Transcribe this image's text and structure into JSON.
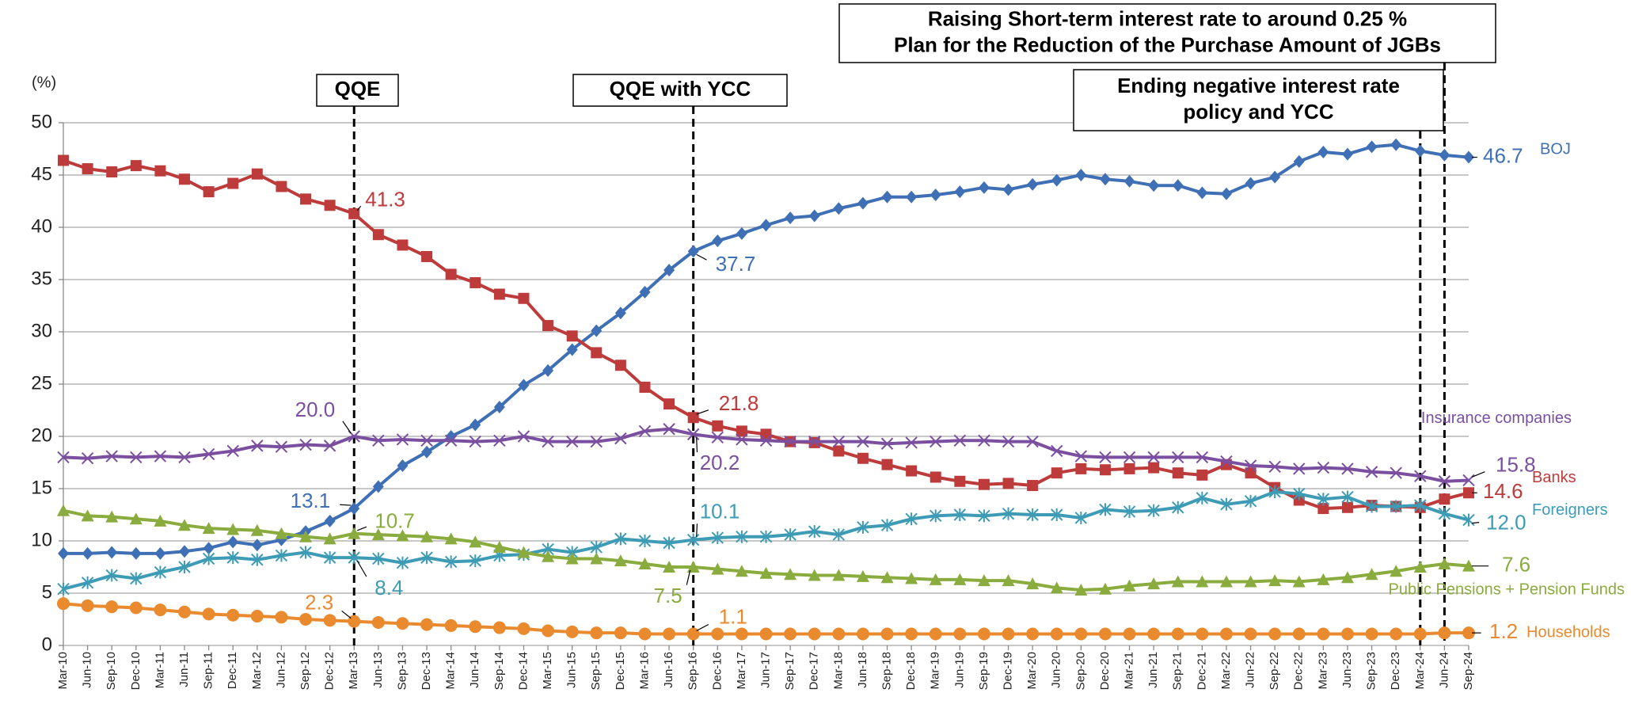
{
  "chart_data": {
    "type": "line",
    "y_unit": "(%)",
    "ylim": [
      0,
      50
    ],
    "yticks": [
      0,
      5,
      10,
      15,
      20,
      25,
      30,
      35,
      40,
      45,
      50
    ],
    "grid": true,
    "annotations": [
      [
        "QQE"
      ],
      [
        "QQE with YCC"
      ],
      [
        "Ending negative interest rate",
        "policy and YCC"
      ],
      [
        "Raising Short-term interest rate to around 0.25 %",
        "Plan for the Reduction of the Purchase Amount of JGBs"
      ]
    ],
    "categories": [
      "Mar-10",
      "Jun-10",
      "Sep-10",
      "Dec-10",
      "Mar-11",
      "Jun-11",
      "Sep-11",
      "Dec-11",
      "Mar-12",
      "Jun-12",
      "Sep-12",
      "Dec-12",
      "Mar-13",
      "Jun-13",
      "Sep-13",
      "Dec-13",
      "Mar-14",
      "Jun-14",
      "Sep-14",
      "Dec-14",
      "Mar-15",
      "Jun-15",
      "Sep-15",
      "Dec-15",
      "Mar-16",
      "Jun-16",
      "Sep-16",
      "Dec-16",
      "Mar-17",
      "Jun-17",
      "Sep-17",
      "Dec-17",
      "Mar-18",
      "Jun-18",
      "Sep-18",
      "Dec-18",
      "Mar-19",
      "Jun-19",
      "Sep-19",
      "Dec-19",
      "Mar-20",
      "Jun-20",
      "Sep-20",
      "Dec-20",
      "Mar-21",
      "Jun-21",
      "Sep-21",
      "Dec-21",
      "Mar-22",
      "Jun-22",
      "Sep-22",
      "Dec-22",
      "Mar-23",
      "Jun-23",
      "Sep-23",
      "Dec-23",
      "Mar-24",
      "Jun-24",
      "Sep-24"
    ],
    "series": [
      {
        "name": "BOJ",
        "color": "#3f6fb5",
        "marker": "diamond",
        "values": [
          8.8,
          8.8,
          8.9,
          8.8,
          8.8,
          9.0,
          9.3,
          9.9,
          9.6,
          10.1,
          10.9,
          11.9,
          13.1,
          15.2,
          17.2,
          18.5,
          20.0,
          21.1,
          22.8,
          24.9,
          26.3,
          28.3,
          30.1,
          31.8,
          33.8,
          35.9,
          37.7,
          38.7,
          39.4,
          40.2,
          40.9,
          41.1,
          41.8,
          42.3,
          42.9,
          42.9,
          43.1,
          43.4,
          43.8,
          43.6,
          44.1,
          44.5,
          45.0,
          44.6,
          44.4,
          44.0,
          44.0,
          43.3,
          43.2,
          44.2,
          44.8,
          46.3,
          47.2,
          47.0,
          47.7,
          47.9,
          47.3,
          46.9,
          46.7
        ],
        "value_labels": [
          null,
          null,
          null,
          null,
          null,
          null,
          null,
          null,
          null,
          null,
          null,
          null,
          "13.1",
          null,
          null,
          null,
          null,
          null,
          null,
          null,
          null,
          null,
          null,
          null,
          null,
          null,
          "37.7",
          null,
          null,
          null,
          null,
          null,
          null,
          null,
          null,
          null,
          null,
          null,
          null,
          null,
          null,
          null,
          null,
          null,
          null,
          null,
          null,
          null,
          null,
          null,
          null,
          null,
          null,
          null,
          null,
          null,
          null,
          null,
          "46.7"
        ]
      },
      {
        "name": "Banks",
        "color": "#be3b3b",
        "marker": "square",
        "values": [
          46.4,
          45.6,
          45.3,
          45.9,
          45.4,
          44.6,
          43.4,
          44.2,
          45.1,
          43.9,
          42.7,
          42.1,
          41.3,
          39.3,
          38.3,
          37.2,
          35.5,
          34.7,
          33.6,
          33.2,
          30.6,
          29.6,
          28.0,
          26.8,
          24.7,
          23.1,
          21.8,
          21.0,
          20.5,
          20.2,
          19.5,
          19.4,
          18.6,
          17.9,
          17.3,
          16.7,
          16.1,
          15.7,
          15.4,
          15.5,
          15.3,
          16.5,
          16.9,
          16.8,
          16.9,
          17.0,
          16.5,
          16.3,
          17.3,
          16.5,
          15.1,
          13.9,
          13.1,
          13.2,
          13.4,
          13.3,
          13.2,
          14.0,
          14.6
        ],
        "value_labels": [
          null,
          null,
          null,
          null,
          null,
          null,
          null,
          null,
          null,
          null,
          null,
          null,
          "41.3",
          null,
          null,
          null,
          null,
          null,
          null,
          null,
          null,
          null,
          null,
          null,
          null,
          null,
          "21.8",
          null,
          null,
          null,
          null,
          null,
          null,
          null,
          null,
          null,
          null,
          null,
          null,
          null,
          null,
          null,
          null,
          null,
          null,
          null,
          null,
          null,
          null,
          null,
          null,
          null,
          null,
          null,
          null,
          null,
          null,
          null,
          "14.6"
        ]
      },
      {
        "name": "Insurance companies",
        "color": "#7b4fa0",
        "marker": "x",
        "values": [
          18.0,
          17.9,
          18.1,
          18.0,
          18.1,
          18.0,
          18.3,
          18.6,
          19.1,
          19.0,
          19.2,
          19.1,
          20.0,
          19.6,
          19.7,
          19.6,
          19.6,
          19.5,
          19.6,
          20.0,
          19.5,
          19.5,
          19.5,
          19.8,
          20.5,
          20.7,
          20.2,
          19.9,
          19.7,
          19.6,
          19.5,
          19.5,
          19.5,
          19.5,
          19.3,
          19.4,
          19.5,
          19.6,
          19.6,
          19.5,
          19.5,
          18.6,
          18.1,
          18.0,
          18.0,
          18.0,
          18.0,
          18.0,
          17.6,
          17.2,
          17.1,
          16.9,
          17.0,
          16.9,
          16.6,
          16.5,
          16.2,
          15.7,
          15.8
        ],
        "value_labels": [
          null,
          null,
          null,
          null,
          null,
          null,
          null,
          null,
          null,
          null,
          null,
          null,
          "20.0",
          null,
          null,
          null,
          null,
          null,
          null,
          null,
          null,
          null,
          null,
          null,
          null,
          null,
          "20.2",
          null,
          null,
          null,
          null,
          null,
          null,
          null,
          null,
          null,
          null,
          null,
          null,
          null,
          null,
          null,
          null,
          null,
          null,
          null,
          null,
          null,
          null,
          null,
          null,
          null,
          null,
          null,
          null,
          null,
          null,
          null,
          "15.8"
        ]
      },
      {
        "name": "Foreigners",
        "color": "#3e9bb5",
        "marker": "star",
        "values": [
          5.4,
          6.0,
          6.7,
          6.4,
          7.0,
          7.5,
          8.3,
          8.4,
          8.2,
          8.6,
          8.9,
          8.4,
          8.4,
          8.3,
          7.9,
          8.4,
          8.0,
          8.1,
          8.6,
          8.7,
          9.2,
          8.9,
          9.4,
          10.2,
          10.0,
          9.8,
          10.1,
          10.3,
          10.4,
          10.4,
          10.6,
          10.9,
          10.6,
          11.3,
          11.5,
          12.1,
          12.4,
          12.5,
          12.4,
          12.6,
          12.5,
          12.5,
          12.2,
          13.0,
          12.8,
          12.9,
          13.2,
          14.1,
          13.5,
          13.8,
          14.7,
          14.5,
          14.0,
          14.2,
          13.3,
          13.3,
          13.4,
          12.6,
          12.0
        ],
        "value_labels": [
          null,
          null,
          null,
          null,
          null,
          null,
          null,
          null,
          null,
          null,
          null,
          null,
          "8.4",
          null,
          null,
          null,
          null,
          null,
          null,
          null,
          null,
          null,
          null,
          null,
          null,
          null,
          "10.1",
          null,
          null,
          null,
          null,
          null,
          null,
          null,
          null,
          null,
          null,
          null,
          null,
          null,
          null,
          null,
          null,
          null,
          null,
          null,
          null,
          null,
          null,
          null,
          null,
          null,
          null,
          null,
          null,
          null,
          null,
          null,
          "12.0"
        ]
      },
      {
        "name": "Public Pensions + Pension Funds",
        "color": "#8aab3d",
        "marker": "triangle",
        "values": [
          12.9,
          12.4,
          12.3,
          12.1,
          11.9,
          11.5,
          11.2,
          11.1,
          11.0,
          10.7,
          10.4,
          10.2,
          10.7,
          10.6,
          10.5,
          10.4,
          10.2,
          9.9,
          9.4,
          8.9,
          8.5,
          8.3,
          8.3,
          8.1,
          7.8,
          7.5,
          7.5,
          7.3,
          7.1,
          6.9,
          6.8,
          6.7,
          6.7,
          6.6,
          6.5,
          6.4,
          6.3,
          6.3,
          6.2,
          6.2,
          5.9,
          5.5,
          5.3,
          5.4,
          5.7,
          5.9,
          6.1,
          6.1,
          6.1,
          6.1,
          6.2,
          6.1,
          6.3,
          6.5,
          6.8,
          7.1,
          7.5,
          7.8,
          7.6
        ],
        "value_labels": [
          null,
          null,
          null,
          null,
          null,
          null,
          null,
          null,
          null,
          null,
          null,
          null,
          "10.7",
          null,
          null,
          null,
          null,
          null,
          null,
          null,
          null,
          null,
          null,
          null,
          null,
          null,
          "7.5",
          null,
          null,
          null,
          null,
          null,
          null,
          null,
          null,
          null,
          null,
          null,
          null,
          null,
          null,
          null,
          null,
          null,
          null,
          null,
          null,
          null,
          null,
          null,
          null,
          null,
          null,
          null,
          null,
          null,
          null,
          null,
          "7.6"
        ]
      },
      {
        "name": "Households",
        "color": "#ea8a2f",
        "marker": "circle",
        "values": [
          4.0,
          3.8,
          3.7,
          3.6,
          3.4,
          3.2,
          3.0,
          2.9,
          2.8,
          2.7,
          2.5,
          2.4,
          2.3,
          2.2,
          2.1,
          2.0,
          1.9,
          1.8,
          1.7,
          1.6,
          1.4,
          1.3,
          1.2,
          1.2,
          1.1,
          1.1,
          1.1,
          1.1,
          1.1,
          1.1,
          1.1,
          1.1,
          1.1,
          1.1,
          1.1,
          1.1,
          1.1,
          1.1,
          1.1,
          1.1,
          1.1,
          1.1,
          1.1,
          1.1,
          1.1,
          1.1,
          1.1,
          1.1,
          1.1,
          1.1,
          1.1,
          1.1,
          1.1,
          1.1,
          1.1,
          1.1,
          1.1,
          1.2,
          1.2
        ],
        "value_labels": [
          null,
          null,
          null,
          null,
          null,
          null,
          null,
          null,
          null,
          null,
          null,
          null,
          "2.3",
          null,
          null,
          null,
          null,
          null,
          null,
          null,
          null,
          null,
          null,
          null,
          null,
          null,
          "1.1",
          null,
          null,
          null,
          null,
          null,
          null,
          null,
          null,
          null,
          null,
          null,
          null,
          null,
          null,
          null,
          null,
          null,
          null,
          null,
          null,
          null,
          null,
          null,
          null,
          null,
          null,
          null,
          null,
          null,
          null,
          null,
          "1.2"
        ]
      }
    ]
  }
}
